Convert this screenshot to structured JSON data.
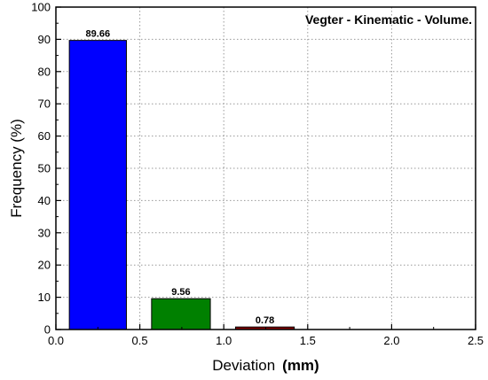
{
  "chart_data": {
    "type": "bar",
    "title": "Vegter - Kinematic - Volume.",
    "xlabel": "Deviation",
    "xlabel_unit": "(mm)",
    "ylabel": "Frequency (%)",
    "xlim": [
      0.0,
      2.5
    ],
    "ylim": [
      0,
      100
    ],
    "x_ticks": [
      "0.0",
      "0.5",
      "1.0",
      "1.5",
      "2.0",
      "2.5"
    ],
    "y_ticks": [
      "0",
      "10",
      "20",
      "30",
      "40",
      "50",
      "60",
      "70",
      "80",
      "90",
      "100"
    ],
    "grid": true,
    "bars": [
      {
        "x_start": 0.08,
        "x_end": 0.42,
        "value": 89.66,
        "label": "89.66",
        "color": "#0000ff"
      },
      {
        "x_start": 0.57,
        "x_end": 0.92,
        "value": 9.56,
        "label": "9.56",
        "color": "#008000"
      },
      {
        "x_start": 1.07,
        "x_end": 1.42,
        "value": 0.78,
        "label": "0.78",
        "color": "#8b0000"
      }
    ]
  }
}
